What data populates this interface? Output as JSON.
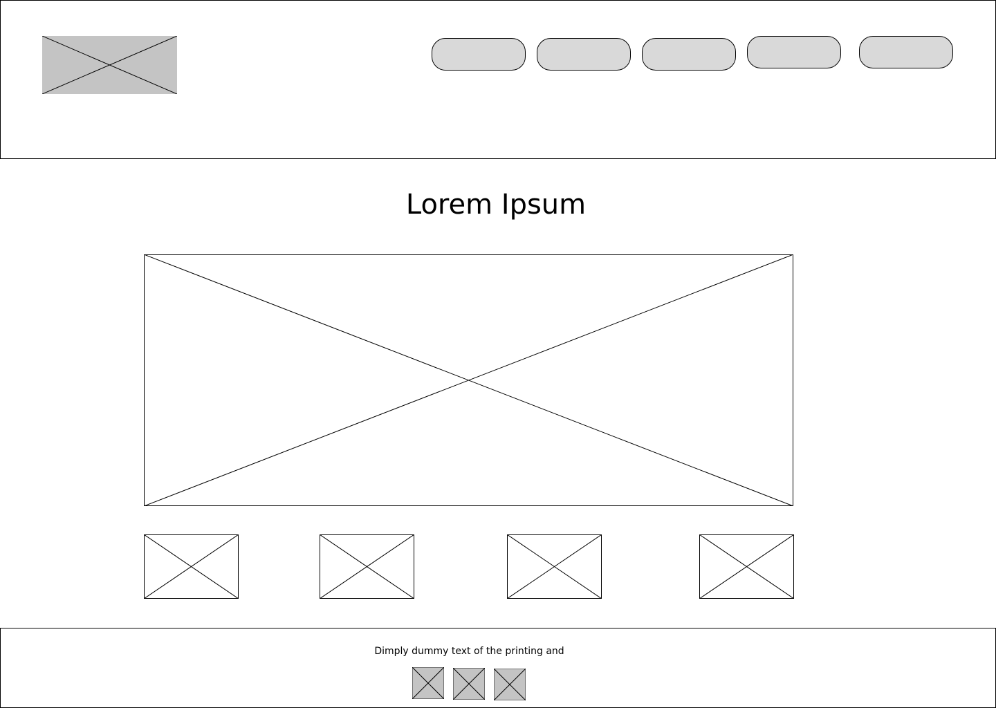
{
  "header": {
    "logo_icon": "image-placeholder-icon",
    "nav_buttons": [
      "",
      "",
      "",
      "",
      ""
    ]
  },
  "main": {
    "title": "Lorem Ipsum",
    "hero_icon": "image-placeholder-icon",
    "thumbnail_icons": [
      "image-placeholder-icon",
      "image-placeholder-icon",
      "image-placeholder-icon",
      "image-placeholder-icon"
    ]
  },
  "footer": {
    "text": "Dimply dummy text of the printing and",
    "social_icons": [
      "image-placeholder-icon",
      "image-placeholder-icon",
      "image-placeholder-icon"
    ]
  },
  "colors": {
    "placeholder_fill": "#c4c4c4",
    "button_fill": "#d9d9d9",
    "stroke": "#000000",
    "background": "#ffffff"
  }
}
